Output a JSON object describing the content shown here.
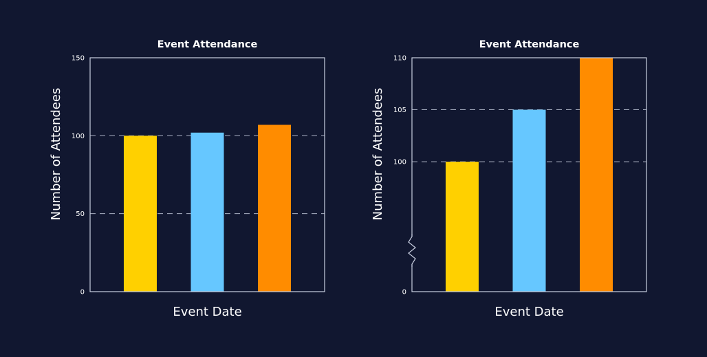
{
  "colors": {
    "background": "#111730",
    "frame": "#c9cfe0",
    "grid": "#aeb5c6",
    "text": "#ffffff",
    "bar_1": "#ffd000",
    "bar_2": "#66c7ff",
    "bar_3": "#ff8c00"
  },
  "chart_data": [
    {
      "type": "bar",
      "title": "Event Attendance",
      "xlabel": "Event Date",
      "ylabel": "Number of Attendees",
      "categories": [
        "",
        "",
        ""
      ],
      "values": [
        100,
        102,
        107
      ],
      "bar_colors": [
        "#ffd000",
        "#66c7ff",
        "#ff8c00"
      ],
      "ylim": [
        0,
        150
      ],
      "yticks": [
        0,
        50,
        100,
        150
      ],
      "grid_values": [
        50,
        100
      ],
      "axis_break": false
    },
    {
      "type": "bar",
      "title": "Event Attendance",
      "xlabel": "Event Date",
      "ylabel": "Number of Attendees",
      "categories": [
        "",
        "",
        ""
      ],
      "values": [
        100,
        105,
        110
      ],
      "bar_colors": [
        "#ffd000",
        "#66c7ff",
        "#ff8c00"
      ],
      "ylim": [
        95,
        110
      ],
      "yticks": [
        100,
        105,
        110
      ],
      "ytick_labels": [
        "100",
        "105",
        "110"
      ],
      "zero_label": "0",
      "grid_values": [
        100,
        105
      ],
      "axis_break": true
    }
  ]
}
